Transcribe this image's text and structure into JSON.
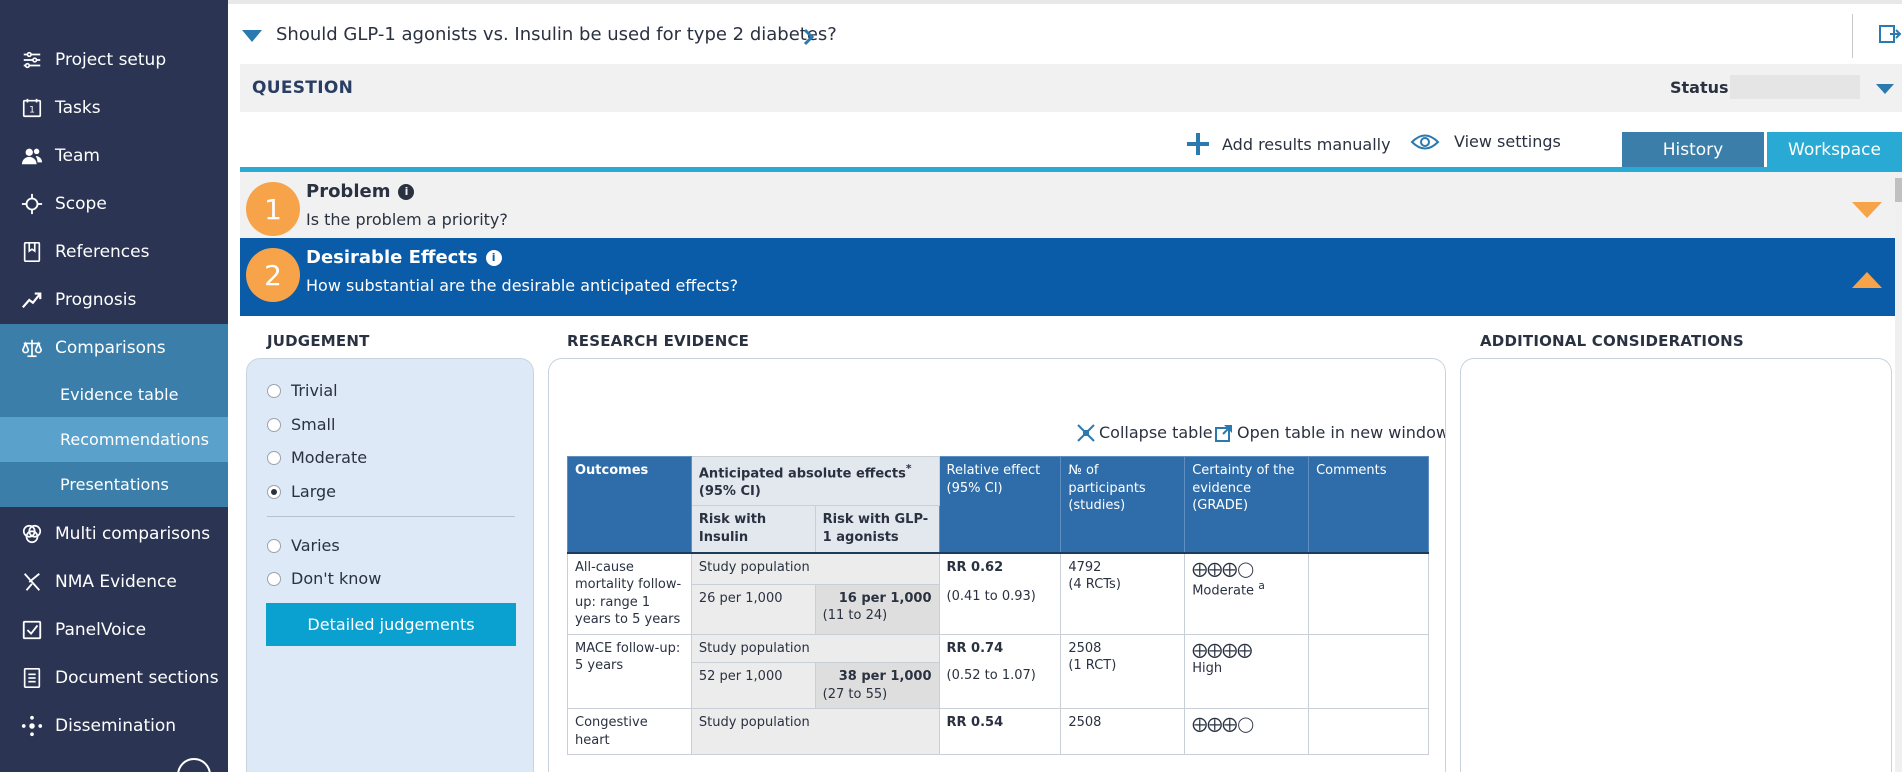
{
  "sidebar": {
    "items": [
      {
        "label": "Project setup",
        "icon": "sliders-icon"
      },
      {
        "label": "Tasks",
        "icon": "calendar-icon"
      },
      {
        "label": "Team",
        "icon": "team-icon"
      },
      {
        "label": "Scope",
        "icon": "scope-icon"
      },
      {
        "label": "References",
        "icon": "bookmark-icon"
      },
      {
        "label": "Prognosis",
        "icon": "trend-icon"
      },
      {
        "label": "Comparisons",
        "icon": "scale-icon"
      },
      {
        "label": "Multi comparisons",
        "icon": "circles-icon"
      },
      {
        "label": "NMA Evidence",
        "icon": "network-icon"
      },
      {
        "label": "PanelVoice",
        "icon": "checkbox-icon"
      },
      {
        "label": "Document sections",
        "icon": "document-icon"
      },
      {
        "label": "Dissemination",
        "icon": "share-icon"
      }
    ],
    "sub_items": [
      {
        "label": "Evidence table"
      },
      {
        "label": "Recommendations"
      },
      {
        "label": "Presentations"
      }
    ]
  },
  "header": {
    "question": "Should GLP-1 agonists vs. Insulin be used for type 2 diabetes?"
  },
  "question_bar": {
    "label": "QUESTION",
    "status_label": "Status",
    "status_value": ""
  },
  "toolbar": {
    "add_results": "Add results manually",
    "view_settings": "View settings",
    "history": "History",
    "workspace": "Workspace"
  },
  "sections": [
    {
      "number": "1",
      "title": "Problem",
      "subtitle": "Is the problem a priority?"
    },
    {
      "number": "2",
      "title": "Desirable Effects",
      "subtitle": "How substantial are the desirable anticipated effects?"
    }
  ],
  "columns": {
    "judgement": "JUDGEMENT",
    "research": "RESEARCH EVIDENCE",
    "additional": "ADDITIONAL CONSIDERATIONS"
  },
  "judgement": {
    "options": [
      "Trivial",
      "Small",
      "Moderate",
      "Large",
      "Varies",
      "Don't know"
    ],
    "selected": "Large",
    "detailed_button": "Detailed judgements"
  },
  "evidence": {
    "collapse": "Collapse table",
    "open_new": "Open table in new window",
    "headers": {
      "outcomes": "Outcomes",
      "anticipated": "Anticipated absolute effects",
      "anticipated_star": "*",
      "anticipated_ci": "(95% CI)",
      "risk_insulin": "Risk with Insulin",
      "risk_glp": "Risk with GLP-1 agonists",
      "relative": "Relative effect (95% CI)",
      "participants": "№ of participants (studies)",
      "certainty": "Certainty of the evidence (GRADE)",
      "comments": "Comments"
    },
    "rows": [
      {
        "outcome": "All-cause mortality follow-up: range 1 years to 5 years",
        "study_population": "Study population",
        "risk_insulin": "26 per 1,000",
        "risk_glp": "16 per 1,000",
        "risk_glp_ci": "(11 to 24)",
        "relative": "RR 0.62",
        "relative_ci": "(0.41 to 0.93)",
        "participants": "4792",
        "studies": "(4 RCTs)",
        "certainty_symbols": "⨁⨁⨁◯",
        "certainty_label": "Moderate",
        "certainty_note": "a",
        "comments": ""
      },
      {
        "outcome": "MACE follow-up:  5 years",
        "study_population": "Study population",
        "risk_insulin": "52 per 1,000",
        "risk_glp": "38 per 1,000",
        "risk_glp_ci": "(27 to 55)",
        "relative": "RR 0.74",
        "relative_ci": "(0.52 to 1.07)",
        "participants": "2508",
        "studies": "(1 RCT)",
        "certainty_symbols": "⨁⨁⨁⨁",
        "certainty_label": "High",
        "comments": ""
      },
      {
        "outcome": "Congestive heart",
        "study_population": "Study population",
        "relative": "RR 0.54",
        "participants": "2508",
        "certainty_symbols": "⨁⨁⨁◯"
      }
    ]
  },
  "colors": {
    "sidebar_bg": "#2b3553",
    "sidebar_active": "#3a7ea9",
    "sidebar_selected": "#5aa2cc",
    "section_active": "#0a5ca8",
    "section_badge": "#f6a349",
    "accent": "#29aad4",
    "table_header": "#2e6da9"
  }
}
